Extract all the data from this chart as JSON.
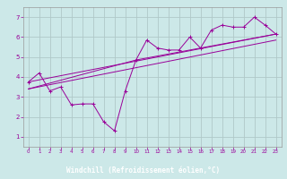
{
  "xlabel": "Windchill (Refroidissement éolien,°C)",
  "background_color": "#cce8e8",
  "grid_color": "#b0c8c8",
  "line_color": "#990099",
  "xlabel_bg_color": "#330066",
  "xlabel_text_color": "#ffffff",
  "xlim": [
    -0.5,
    23.5
  ],
  "ylim": [
    0.5,
    7.5
  ],
  "xticks": [
    0,
    1,
    2,
    3,
    4,
    5,
    6,
    7,
    8,
    9,
    10,
    11,
    12,
    13,
    14,
    15,
    16,
    17,
    18,
    19,
    20,
    21,
    22,
    23
  ],
  "yticks": [
    1,
    2,
    3,
    4,
    5,
    6,
    7
  ],
  "series1_x": [
    0,
    1,
    2,
    3,
    4,
    5,
    6,
    7,
    8,
    9,
    10,
    11,
    12,
    13,
    14,
    15,
    16,
    17,
    18,
    19,
    20,
    21,
    22,
    23
  ],
  "series1_y": [
    3.75,
    4.2,
    3.3,
    3.5,
    2.6,
    2.65,
    2.65,
    1.75,
    1.3,
    3.3,
    4.85,
    5.85,
    5.45,
    5.35,
    5.35,
    6.0,
    5.45,
    6.35,
    6.6,
    6.5,
    6.5,
    7.0,
    6.6,
    6.15
  ],
  "series2_x": [
    0,
    23
  ],
  "series2_y": [
    3.75,
    6.15
  ],
  "series3_x": [
    0,
    23
  ],
  "series3_y": [
    3.4,
    5.85
  ],
  "series4_x": [
    0,
    10,
    23
  ],
  "series4_y": [
    3.4,
    4.85,
    6.15
  ]
}
